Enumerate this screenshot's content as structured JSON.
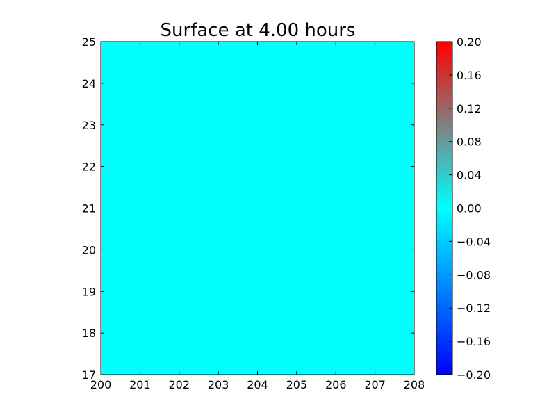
{
  "chart_data": {
    "type": "heatmap",
    "title": "Surface at 4.00 hours",
    "xlabel": "",
    "ylabel": "",
    "xlim": [
      200,
      208
    ],
    "ylim": [
      17,
      25
    ],
    "x_ticks": [
      200,
      201,
      202,
      203,
      204,
      205,
      206,
      207,
      208
    ],
    "y_ticks": [
      17,
      18,
      19,
      20,
      21,
      22,
      23,
      24,
      25
    ],
    "surface_value": 0.0,
    "surface_color": "#00ffff",
    "colorbar": {
      "range": [
        -0.2,
        0.2
      ],
      "ticks": [
        "0.20",
        "0.16",
        "0.12",
        "0.08",
        "0.04",
        "0.00",
        "−0.04",
        "−0.08",
        "−0.12",
        "−0.16",
        "−0.20"
      ],
      "tick_values": [
        0.2,
        0.16,
        0.12,
        0.08,
        0.04,
        0.0,
        -0.04,
        -0.08,
        -0.12,
        -0.16,
        -0.2
      ],
      "colors": {
        "min": "#0000ff",
        "low": "#0080ff",
        "zero": "#00ffff",
        "high": "#808080",
        "max": "#ff0000"
      }
    },
    "grid": false,
    "legend": "none"
  }
}
